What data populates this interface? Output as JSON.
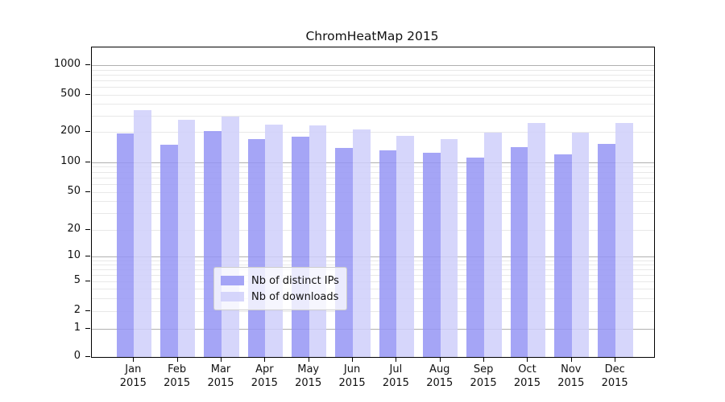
{
  "title": "ChromHeatMap 2015",
  "chart_data": {
    "type": "bar",
    "title": "ChromHeatMap 2015",
    "categories": [
      "Jan",
      "Feb",
      "Mar",
      "Apr",
      "May",
      "Jun",
      "Jul",
      "Aug",
      "Sep",
      "Oct",
      "Nov",
      "Dec"
    ],
    "year_label": "2015",
    "series": [
      {
        "name": "Nb of distinct IPs",
        "color": "#9595f4",
        "values": [
          195,
          150,
          205,
          171,
          181,
          138,
          131,
          124,
          111,
          141,
          119,
          153
        ]
      },
      {
        "name": "Nb of downloads",
        "color": "#cfcffa",
        "values": [
          340,
          271,
          291,
          238,
          236,
          212,
          184,
          171,
          198,
          250,
          197,
          250
        ]
      }
    ],
    "xlabel": "",
    "ylabel": "",
    "yscale": "log-like",
    "yticks": [
      0,
      1,
      2,
      5,
      10,
      20,
      50,
      100,
      200,
      500,
      1000
    ],
    "ylim": [
      0,
      1200
    ],
    "grid": "horizontal, major at powers of 10 (darker) plus minor log lines (faint)",
    "legend_position": "lower center",
    "legend_entries": [
      "Nb of distinct IPs",
      "Nb of downloads"
    ]
  },
  "colors": {
    "major_grid": "#b0b0b0",
    "minor_grid": "#e8e8e8",
    "spine": "#000000",
    "background": "#ffffff"
  }
}
